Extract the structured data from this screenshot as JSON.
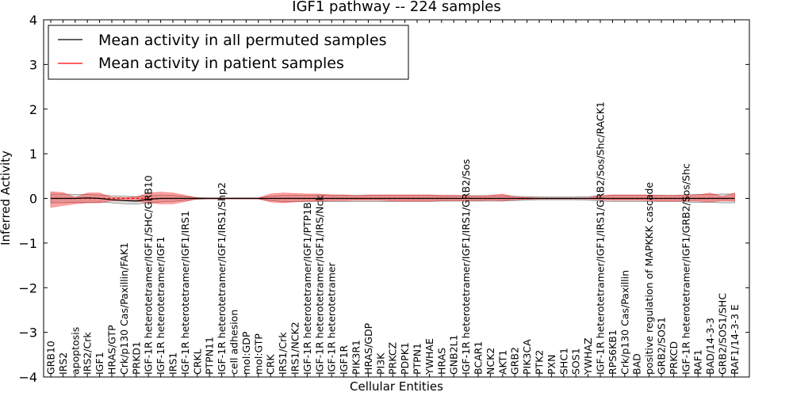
{
  "chart_data": {
    "type": "line",
    "title": "IGF1 pathway -- 224 samples",
    "xlabel": "Cellular Entities",
    "ylabel": "Inferred Activity",
    "ylim": [
      -4,
      4
    ],
    "yticks": [
      "−4",
      "−3",
      "−2",
      "−1",
      "0",
      "1",
      "2",
      "3",
      "4"
    ],
    "ytick_values": [
      -4,
      -3,
      -2,
      -1,
      0,
      1,
      2,
      3,
      4
    ],
    "legend_position": "top-left",
    "categories": [
      "GRB10",
      "IRS2",
      "apoptosis",
      "IRS2/Crk",
      "IGF1",
      "HRAS/GTP",
      "Crk/p130 Cas/Paxillin/FAK1",
      "PRKD1",
      "IGF-1R heterotetramer/IGF1/SHC/GRB10",
      "IGF-1R heterotetramer/IGF1",
      "IRS1",
      "IGF-1R heterotetramer/IGF1/IRS1",
      "CRKL",
      "PTPN11",
      "IGF-1R heterotetramer/IGF1/IRS1/Shp2",
      "cell adhesion",
      "mol:GDP",
      "mol:GTP",
      "CRK",
      "IRS1/Crk",
      "IRS1/NCK2",
      "IGF-1R heterotetramer/IGF1/PTP1B",
      "IGF-1R heterotetramer/IGF1/IRS/Nck",
      "IGF-1R heterotetramer",
      "IGF1R",
      "PIK3R1",
      "HRAS/GDP",
      "PI3K",
      "PRKCZ",
      "PDPK1",
      "PTPN1",
      "YWHAE",
      "HRAS",
      "GNB2L1",
      "IGF-1R heterotetramer/IGF1/IRS1/GRB2/Sos",
      "BCAR1",
      "NCK2",
      "AKT1",
      "GRB2",
      "PIK3CA",
      "PTK2",
      "PXN",
      "SHC1",
      "SOS1",
      "YWHAZ",
      "IGF-1R heterotetramer/IGF1/IRS1/GRB2/Sos/Shc/RACK1",
      "RPS6KB1",
      "Crk/p130 Cas/Paxillin",
      "BAD",
      "positive regulation of MAPKKK cascade",
      "GRB2/SOS1",
      "PRKCD",
      "IGF-1R heterotetramer/IGF1/GRB2/Sos/Shc",
      "RAF1",
      "BAD/14-3-3",
      "GRB2/SOS1/SHC",
      "RAF1/14-3-3 E"
    ],
    "series": [
      {
        "name": "Mean activity in all permuted samples",
        "color": "#000000",
        "values": [
          0,
          0,
          0,
          0.01,
          0,
          -0.03,
          -0.05,
          -0.06,
          -0.02,
          0,
          0,
          0,
          0,
          0,
          0,
          0,
          0,
          0,
          0,
          0,
          0,
          0,
          0,
          0,
          0,
          0,
          0,
          0,
          0,
          0,
          0,
          0,
          0,
          0,
          0,
          0,
          0,
          0,
          0,
          0,
          0,
          0,
          0,
          0,
          0,
          0,
          0,
          0,
          0,
          0,
          0,
          0,
          0,
          0,
          0,
          0,
          0
        ],
        "band_upper": [
          0.1,
          0.1,
          0.09,
          0.09,
          0.08,
          0.06,
          0.05,
          0.04,
          0.06,
          0.08,
          0.07,
          0.04,
          0.02,
          0.01,
          0.01,
          0.01,
          0.01,
          0.01,
          0.05,
          0.07,
          0.07,
          0.07,
          0.07,
          0.07,
          0.07,
          0.07,
          0.07,
          0.07,
          0.07,
          0.07,
          0.07,
          0.07,
          0.06,
          0.06,
          0.06,
          0.06,
          0.06,
          0.06,
          0.05,
          0.04,
          0.03,
          0.03,
          0.03,
          0.03,
          0.04,
          0.06,
          0.07,
          0.07,
          0.07,
          0.07,
          0.07,
          0.07,
          0.08,
          0.09,
          0.09,
          0.1,
          0.1
        ],
        "band_lower": [
          -0.1,
          -0.1,
          -0.09,
          -0.09,
          -0.08,
          -0.1,
          -0.12,
          -0.13,
          -0.1,
          -0.08,
          -0.07,
          -0.04,
          -0.02,
          -0.01,
          -0.01,
          -0.01,
          -0.01,
          -0.01,
          -0.05,
          -0.07,
          -0.07,
          -0.07,
          -0.07,
          -0.07,
          -0.07,
          -0.07,
          -0.07,
          -0.07,
          -0.07,
          -0.07,
          -0.07,
          -0.07,
          -0.06,
          -0.06,
          -0.06,
          -0.06,
          -0.06,
          -0.06,
          -0.05,
          -0.04,
          -0.03,
          -0.03,
          -0.03,
          -0.03,
          -0.04,
          -0.06,
          -0.07,
          -0.07,
          -0.07,
          -0.07,
          -0.07,
          -0.07,
          -0.08,
          -0.09,
          -0.09,
          -0.1,
          -0.1
        ]
      },
      {
        "name": "Mean activity in patient samples",
        "color": "#ff0000",
        "values": [
          0,
          0,
          0,
          0,
          0,
          0,
          0,
          0,
          0,
          0,
          0,
          0,
          0,
          0,
          0,
          0,
          0,
          0,
          0,
          0,
          0,
          0,
          0,
          0,
          0,
          0,
          0,
          0,
          0,
          0,
          0,
          0,
          0,
          0,
          0,
          0,
          0,
          0,
          0,
          0,
          0,
          0,
          0,
          0,
          0,
          0,
          0,
          0,
          0,
          0,
          0,
          0,
          0,
          0,
          0,
          0,
          0
        ],
        "band_upper": [
          0.15,
          0.13,
          0.02,
          0.12,
          0.12,
          0.02,
          0.02,
          0.03,
          0.12,
          0.14,
          0.12,
          0.07,
          0.01,
          0.01,
          0.01,
          0.01,
          0.01,
          0.01,
          0.1,
          0.12,
          0.11,
          0.1,
          0.1,
          0.08,
          0.08,
          0.06,
          0.08,
          0.08,
          0.08,
          0.08,
          0.08,
          0.08,
          0.07,
          0.07,
          0.06,
          0.05,
          0.07,
          0.1,
          0.03,
          0.02,
          0.01,
          0.01,
          0.01,
          0.01,
          0.01,
          0.06,
          0.08,
          0.08,
          0.08,
          0.08,
          0.07,
          0.06,
          0.08,
          0.08,
          0.12,
          0.04,
          0.12
        ],
        "band_lower": [
          -0.2,
          -0.16,
          -0.12,
          -0.1,
          -0.1,
          -0.05,
          -0.05,
          -0.06,
          -0.1,
          -0.12,
          -0.12,
          -0.07,
          -0.01,
          -0.01,
          -0.01,
          -0.01,
          -0.01,
          -0.01,
          -0.08,
          -0.1,
          -0.08,
          -0.06,
          -0.06,
          -0.05,
          -0.05,
          -0.04,
          -0.04,
          -0.04,
          -0.06,
          -0.06,
          -0.06,
          -0.06,
          -0.05,
          -0.05,
          -0.05,
          -0.05,
          -0.04,
          -0.05,
          -0.03,
          -0.02,
          -0.01,
          -0.01,
          -0.01,
          -0.01,
          -0.01,
          -0.03,
          -0.04,
          -0.04,
          -0.04,
          -0.05,
          -0.06,
          -0.06,
          -0.06,
          -0.06,
          -0.08,
          -0.05,
          -0.06
        ]
      }
    ]
  }
}
